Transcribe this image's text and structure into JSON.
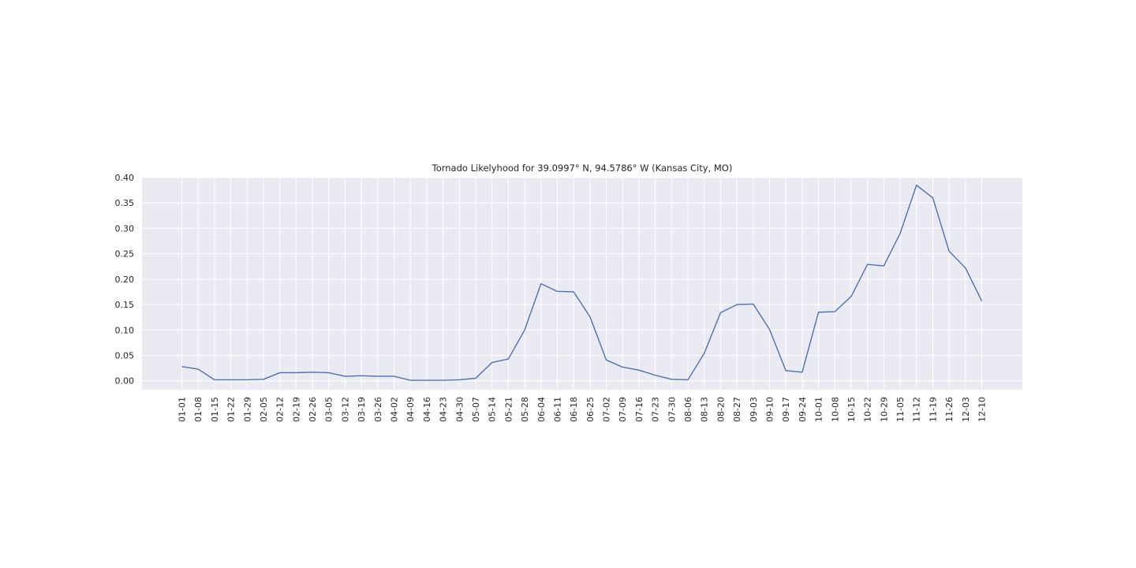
{
  "chart_data": {
    "type": "line",
    "title": "Tornado Likelyhood for 39.0997° N, 94.5786° W (Kansas City, MO)",
    "xlabel": "",
    "ylabel": "",
    "ylim": [
      -0.0175,
      0.4
    ],
    "yticks": [
      "0.00",
      "0.05",
      "0.10",
      "0.15",
      "0.20",
      "0.25",
      "0.30",
      "0.35",
      "0.40"
    ],
    "grid": true,
    "legend": "none",
    "colors": {
      "background": "#eaeaf2",
      "grid": "#ffffff",
      "line": "#4c72b0",
      "text": "#262626"
    },
    "categories": [
      "01-01",
      "01-08",
      "01-15",
      "01-22",
      "01-29",
      "02-05",
      "02-12",
      "02-19",
      "02-26",
      "03-05",
      "03-12",
      "03-19",
      "03-26",
      "04-02",
      "04-09",
      "04-16",
      "04-23",
      "04-30",
      "05-07",
      "05-14",
      "05-21",
      "05-28",
      "06-04",
      "06-11",
      "06-18",
      "06-25",
      "07-02",
      "07-09",
      "07-16",
      "07-23",
      "07-30",
      "08-06",
      "08-13",
      "08-20",
      "08-27",
      "09-03",
      "09-10",
      "09-17",
      "09-24",
      "10-01",
      "10-08",
      "10-15",
      "10-22",
      "10-29",
      "11-05",
      "11-12",
      "11-19",
      "11-26",
      "12-03",
      "12-10"
    ],
    "series": [
      {
        "values": [
          0.028,
          0.023,
          0.002,
          0.002,
          0.002,
          0.003,
          0.016,
          0.016,
          0.017,
          0.016,
          0.009,
          0.01,
          0.009,
          0.009,
          0.001,
          0.001,
          0.001,
          0.002,
          0.005,
          0.036,
          0.043,
          0.1,
          0.191,
          0.176,
          0.175,
          0.126,
          0.041,
          0.027,
          0.021,
          0.011,
          0.003,
          0.002,
          0.054,
          0.134,
          0.15,
          0.151,
          0.101,
          0.02,
          0.017,
          0.135,
          0.136,
          0.166,
          0.229,
          0.226,
          0.29,
          0.385,
          0.36,
          0.255,
          0.222,
          0.157
        ]
      }
    ]
  }
}
